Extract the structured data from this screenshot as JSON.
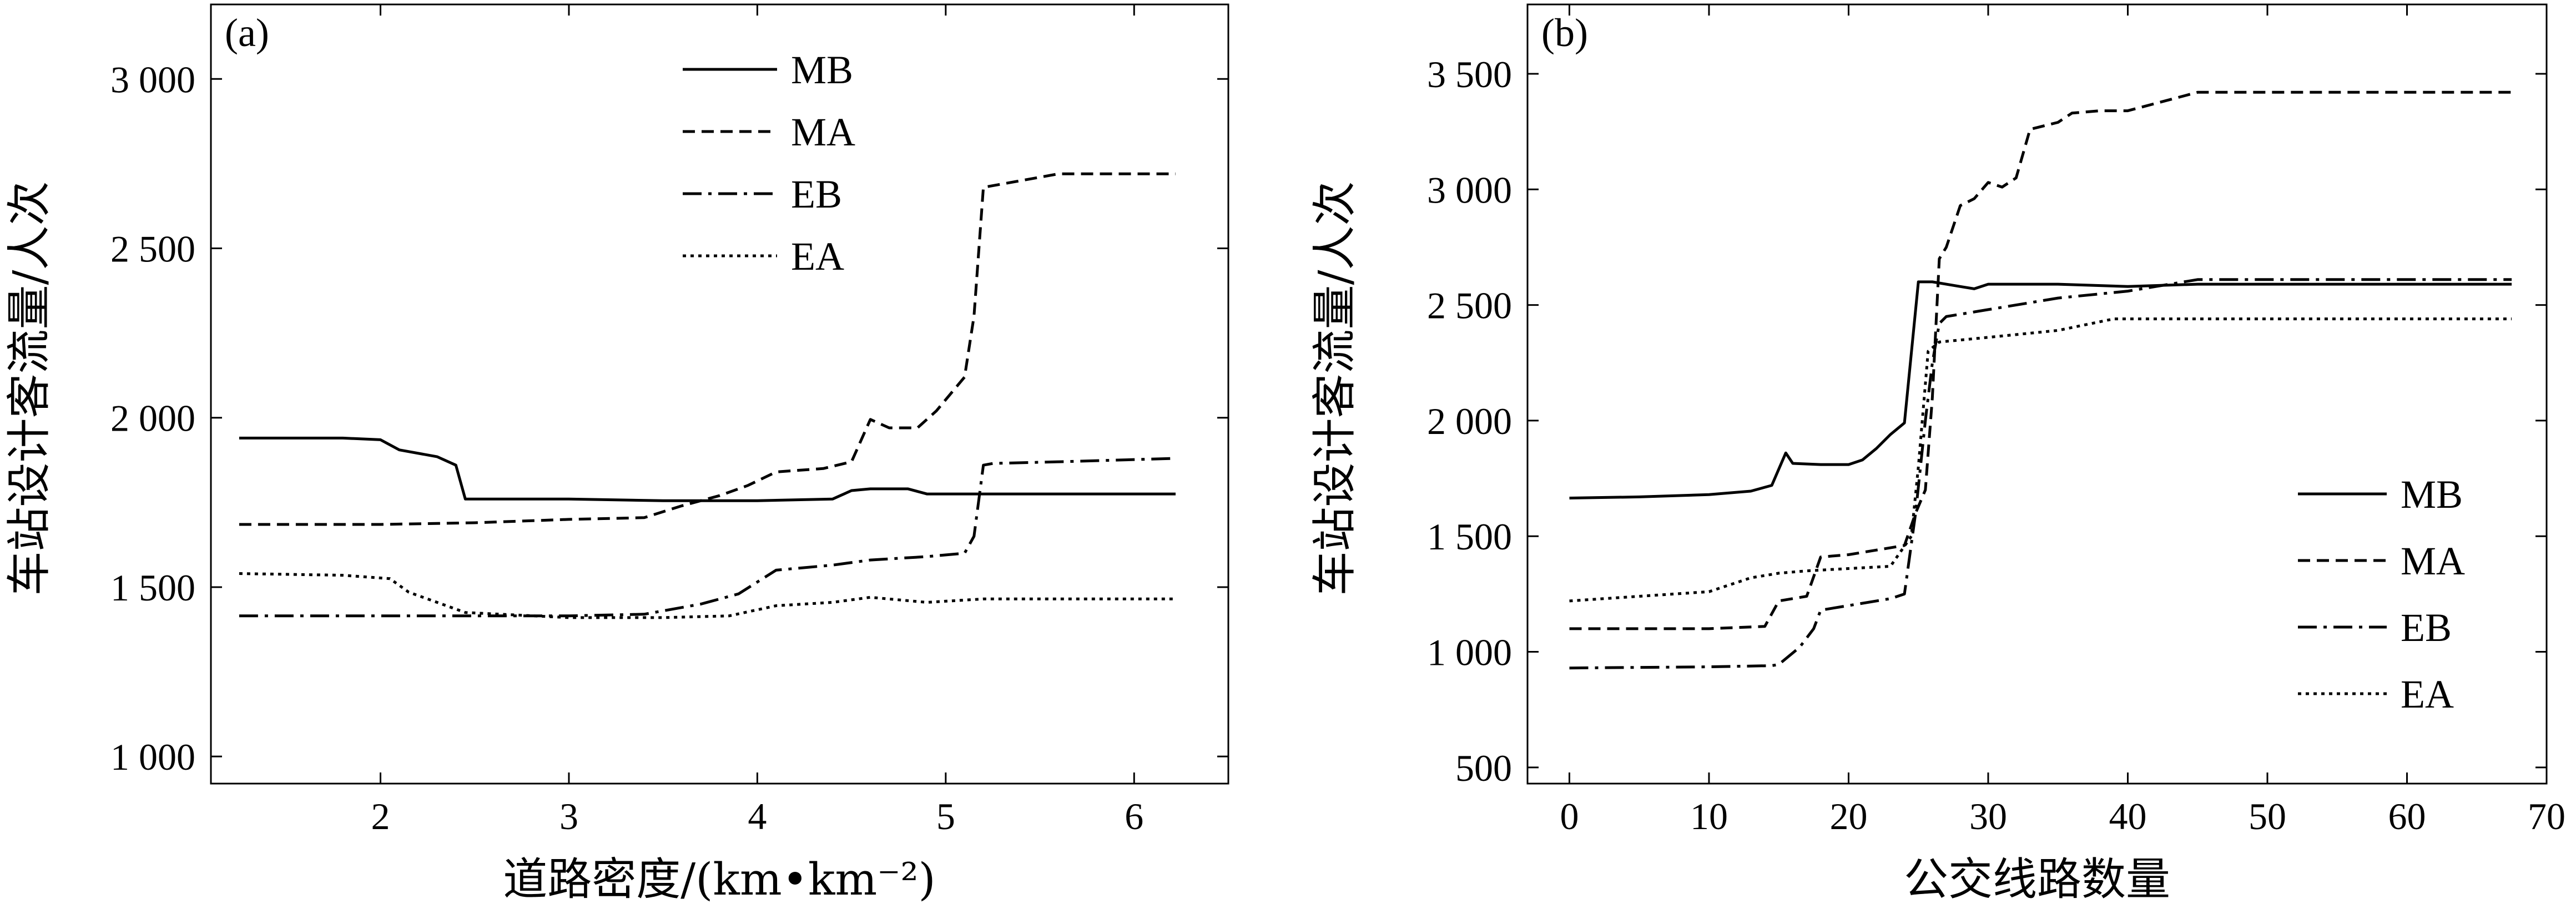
{
  "chart_data": [
    {
      "type": "line",
      "panel": "(a)",
      "xlabel": "道路密度/(km•km⁻²)",
      "ylabel": "车站设计客流量/人次",
      "xlim": [
        1.1,
        6.5
      ],
      "ylim": [
        920,
        3220
      ],
      "xticks": [
        2,
        3,
        4,
        5,
        6
      ],
      "xtick_labels": [
        "2",
        "3",
        "4",
        "5",
        "6"
      ],
      "yticks": [
        1000,
        1500,
        2000,
        2500,
        3000
      ],
      "ytick_labels": [
        "1 000",
        "1 500",
        "2 000",
        "2 500",
        "3 000"
      ],
      "legend_position": "top-center",
      "series": [
        {
          "name": "MB",
          "style": "solid",
          "x": [
            1.25,
            1.8,
            2.0,
            2.1,
            2.3,
            2.4,
            2.45,
            3.0,
            3.5,
            4.0,
            4.4,
            4.5,
            4.6,
            4.8,
            4.9,
            5.5,
            6.22
          ],
          "y": [
            1940,
            1940,
            1935,
            1905,
            1885,
            1860,
            1760,
            1760,
            1755,
            1755,
            1760,
            1785,
            1790,
            1790,
            1775,
            1775,
            1775
          ]
        },
        {
          "name": "MA",
          "style": "dashed",
          "x": [
            1.25,
            2.0,
            2.5,
            3.0,
            3.4,
            3.6,
            3.8,
            3.95,
            4.1,
            4.35,
            4.5,
            4.6,
            4.7,
            4.85,
            4.95,
            5.1,
            5.15,
            5.2,
            5.3,
            5.6,
            6.22
          ],
          "y": [
            1685,
            1685,
            1690,
            1700,
            1705,
            1740,
            1770,
            1800,
            1840,
            1850,
            1870,
            1995,
            1970,
            1970,
            2020,
            2120,
            2300,
            2680,
            2690,
            2720,
            2720
          ]
        },
        {
          "name": "EB",
          "style": "dashdot",
          "x": [
            1.25,
            2.0,
            3.0,
            3.4,
            3.7,
            3.9,
            4.1,
            4.4,
            4.6,
            4.9,
            5.1,
            5.15,
            5.2,
            5.25,
            5.6,
            6.22
          ],
          "y": [
            1415,
            1415,
            1415,
            1420,
            1450,
            1480,
            1550,
            1565,
            1580,
            1590,
            1600,
            1650,
            1860,
            1865,
            1870,
            1880
          ]
        },
        {
          "name": "EA",
          "style": "dotted",
          "x": [
            1.25,
            1.8,
            2.05,
            2.15,
            2.45,
            3.0,
            3.5,
            3.85,
            4.1,
            4.4,
            4.6,
            4.9,
            5.2,
            5.6,
            6.22
          ],
          "y": [
            1540,
            1535,
            1525,
            1485,
            1425,
            1410,
            1410,
            1415,
            1445,
            1455,
            1470,
            1455,
            1465,
            1465,
            1465
          ]
        }
      ]
    },
    {
      "type": "line",
      "panel": "(b)",
      "xlabel": "公交线路数量",
      "ylabel": "车站设计客流量/人次",
      "xlim": [
        -3,
        70
      ],
      "ylim": [
        430,
        3800
      ],
      "xticks": [
        0,
        10,
        20,
        30,
        40,
        50,
        60,
        70
      ],
      "xtick_labels": [
        "0",
        "10",
        "20",
        "30",
        "40",
        "50",
        "60",
        "70"
      ],
      "yticks": [
        500,
        1000,
        1500,
        2000,
        2500,
        3000,
        3500
      ],
      "ytick_labels": [
        "500",
        "1 000",
        "1 500",
        "2 000",
        "2 500",
        "3 000",
        "3 500"
      ],
      "legend_position": "bottom-right",
      "series": [
        {
          "name": "MB",
          "style": "solid",
          "x": [
            0,
            5,
            10,
            13,
            14.5,
            15,
            15.5,
            16,
            18,
            20,
            21,
            22,
            23,
            24,
            25,
            26,
            28,
            29,
            30,
            35,
            40,
            45,
            67.5
          ],
          "y": [
            1665,
            1670,
            1680,
            1695,
            1720,
            1790,
            1860,
            1815,
            1810,
            1810,
            1830,
            1880,
            1940,
            1990,
            2600,
            2600,
            2580,
            2570,
            2590,
            2590,
            2580,
            2590,
            2590
          ]
        },
        {
          "name": "MA",
          "style": "dashed",
          "x": [
            0,
            5,
            10,
            14,
            15,
            17,
            18,
            20,
            22,
            24,
            24.8,
            25.5,
            26,
            26.5,
            27,
            28,
            29,
            30,
            31,
            32,
            33,
            35,
            36,
            38,
            40,
            45,
            67.5
          ],
          "y": [
            1100,
            1100,
            1100,
            1110,
            1220,
            1240,
            1410,
            1420,
            1440,
            1460,
            1600,
            1700,
            2100,
            2700,
            2750,
            2930,
            2960,
            3030,
            3010,
            3050,
            3260,
            3290,
            3330,
            3340,
            3340,
            3420,
            3420
          ]
        },
        {
          "name": "EB",
          "style": "dashdot",
          "x": [
            0,
            10,
            14.5,
            15,
            16.5,
            17.5,
            18,
            20,
            23,
            24,
            24.8,
            25.5,
            26,
            26.5,
            27,
            30,
            35,
            40,
            45,
            67.5
          ],
          "y": [
            930,
            935,
            940,
            945,
            1020,
            1100,
            1180,
            1200,
            1230,
            1250,
            1600,
            2000,
            2250,
            2420,
            2450,
            2480,
            2530,
            2560,
            2610,
            2610
          ]
        },
        {
          "name": "EA",
          "style": "dotted",
          "x": [
            0,
            5,
            10,
            13,
            15,
            17,
            20,
            23,
            24.5,
            25,
            25.7,
            26.5,
            30,
            35,
            39,
            45,
            67.5
          ],
          "y": [
            1220,
            1240,
            1260,
            1320,
            1340,
            1350,
            1360,
            1370,
            1500,
            1800,
            2300,
            2340,
            2360,
            2390,
            2440,
            2440,
            2440
          ]
        }
      ]
    }
  ]
}
